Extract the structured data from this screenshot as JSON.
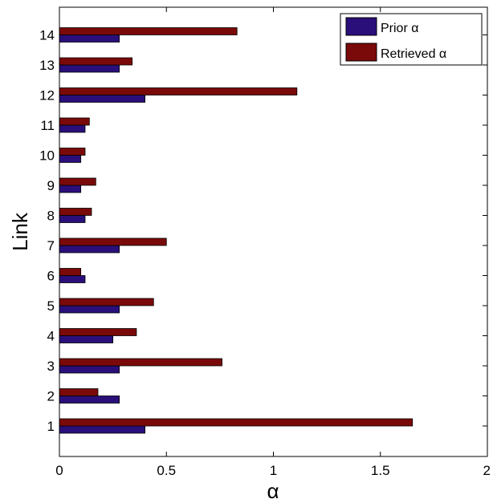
{
  "chart_data": {
    "type": "bar",
    "orientation": "horizontal",
    "categories": [
      "1",
      "2",
      "3",
      "4",
      "5",
      "6",
      "7",
      "8",
      "9",
      "10",
      "11",
      "12",
      "13",
      "14"
    ],
    "series": [
      {
        "name": "Prior α",
        "color": "#2a0f7a",
        "values": [
          0.4,
          0.28,
          0.28,
          0.25,
          0.28,
          0.12,
          0.28,
          0.12,
          0.1,
          0.1,
          0.12,
          0.4,
          0.28,
          0.28
        ]
      },
      {
        "name": "Retrieved α",
        "color": "#7a0a0a",
        "values": [
          1.65,
          0.18,
          0.76,
          0.36,
          0.44,
          0.1,
          0.5,
          0.15,
          0.17,
          0.12,
          0.14,
          1.11,
          0.34,
          0.83
        ]
      }
    ],
    "xlabel": "α",
    "ylabel": "Link",
    "xlim": [
      0,
      2
    ],
    "xticks": [
      "0",
      "0.5",
      "1",
      "1.5",
      "2"
    ],
    "grid": false,
    "legend_position": "top-right"
  }
}
